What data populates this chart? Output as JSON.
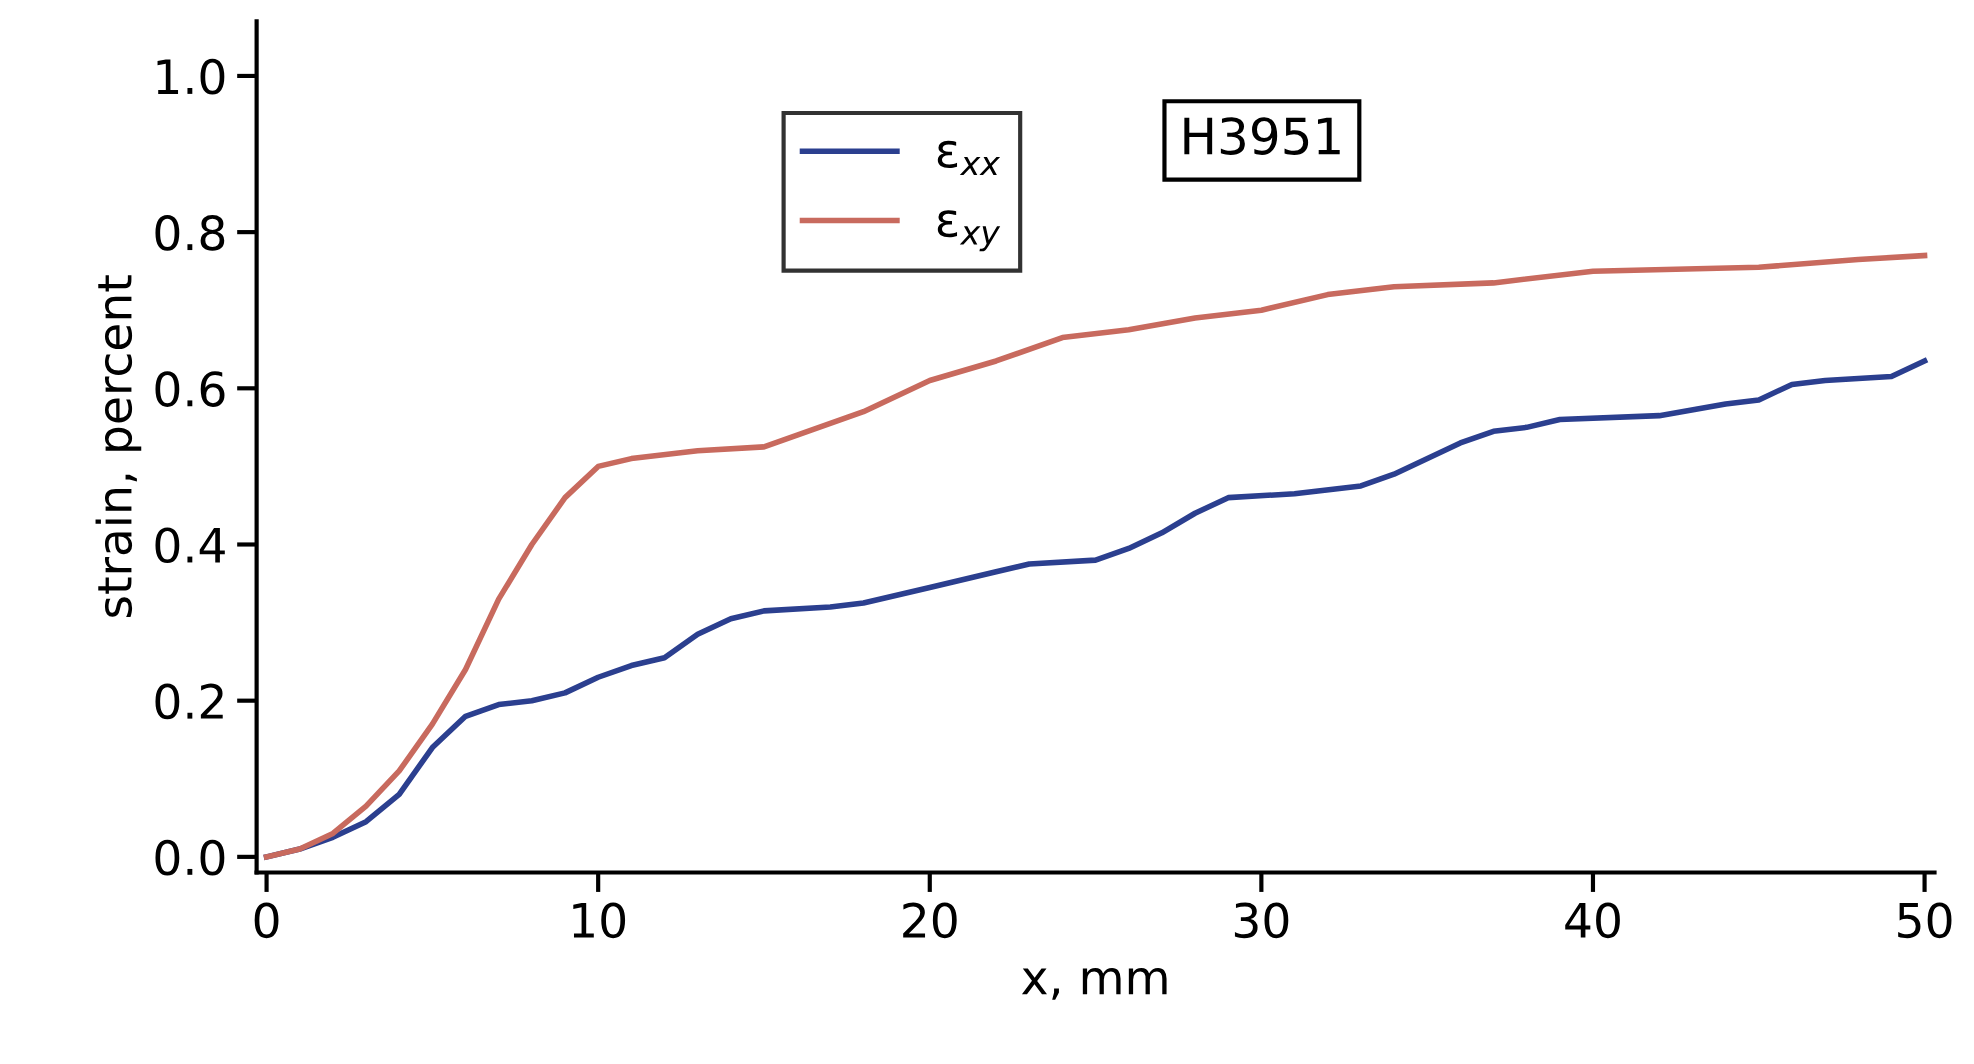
{
  "chart_data": {
    "type": "line",
    "xlabel": "x, mm",
    "ylabel": "strain, percent",
    "legend": "top left",
    "grid": false,
    "marker": "none",
    "line_style": "solid",
    "annotations": [
      "H3951"
    ],
    "xlim": [
      -0.3,
      50.3
    ],
    "ylim": [
      -0.02,
      1.07
    ],
    "xticks": [
      0,
      10,
      20,
      30,
      40,
      50
    ],
    "yticks": [
      {
        "value": 0,
        "label": "0.0"
      },
      {
        "value": 0.2,
        "label": "0.2"
      },
      {
        "value": 0.4,
        "label": "0.4"
      },
      {
        "value": 0.6,
        "label": "0.6"
      },
      {
        "value": 0.8,
        "label": "0.8"
      },
      {
        "value": 1.0,
        "label": "1.0"
      }
    ],
    "series": [
      {
        "name": "ε$_{xx}$",
        "color": "#2b3f8f",
        "x": [
          0,
          1,
          2,
          3,
          4,
          5,
          6,
          7,
          8,
          9,
          10,
          11,
          12,
          13,
          14,
          15,
          17,
          18,
          20,
          22,
          23,
          25,
          26,
          27,
          28,
          29,
          31,
          33,
          34,
          36,
          37,
          38,
          39,
          42,
          44,
          45,
          46,
          47,
          49,
          50
        ],
        "values": [
          0,
          0.01,
          0.025,
          0.045,
          0.08,
          0.14,
          0.18,
          0.195,
          0.2,
          0.21,
          0.23,
          0.245,
          0.255,
          0.285,
          0.305,
          0.315,
          0.32,
          0.325,
          0.345,
          0.365,
          0.375,
          0.38,
          0.395,
          0.415,
          0.44,
          0.46,
          0.465,
          0.475,
          0.49,
          0.53,
          0.545,
          0.55,
          0.56,
          0.565,
          0.58,
          0.585,
          0.605,
          0.61,
          0.615,
          0.635
        ]
      },
      {
        "name": "ε$_{xy}$",
        "color": "#c86a5e",
        "x": [
          0,
          1,
          2,
          3,
          4,
          5,
          6,
          7,
          8,
          9,
          10,
          11,
          13,
          15,
          16,
          18,
          20,
          22,
          24,
          26,
          28,
          30,
          32,
          34,
          37,
          40,
          45,
          48,
          50
        ],
        "values": [
          0,
          0.01,
          0.03,
          0.065,
          0.11,
          0.17,
          0.24,
          0.33,
          0.4,
          0.46,
          0.5,
          0.51,
          0.52,
          0.525,
          0.54,
          0.57,
          0.61,
          0.635,
          0.665,
          0.675,
          0.69,
          0.7,
          0.72,
          0.73,
          0.735,
          0.75,
          0.755,
          0.765,
          0.77
        ]
      }
    ]
  }
}
